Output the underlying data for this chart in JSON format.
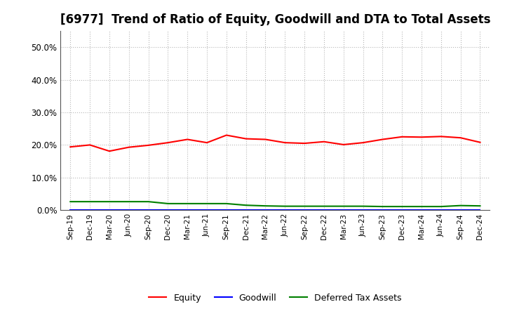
{
  "title": "[6977]  Trend of Ratio of Equity, Goodwill and DTA to Total Assets",
  "x_labels": [
    "Sep-19",
    "Dec-19",
    "Mar-20",
    "Jun-20",
    "Sep-20",
    "Dec-20",
    "Mar-21",
    "Jun-21",
    "Sep-21",
    "Dec-21",
    "Mar-22",
    "Jun-22",
    "Sep-22",
    "Dec-22",
    "Mar-23",
    "Jun-23",
    "Sep-23",
    "Dec-23",
    "Mar-24",
    "Jun-24",
    "Sep-24",
    "Dec-24"
  ],
  "equity": [
    0.194,
    0.2,
    0.181,
    0.193,
    0.199,
    0.207,
    0.217,
    0.207,
    0.23,
    0.219,
    0.217,
    0.207,
    0.205,
    0.21,
    0.201,
    0.207,
    0.217,
    0.225,
    0.224,
    0.226,
    0.222,
    0.208
  ],
  "goodwill": [
    0.0,
    0.0,
    0.0,
    0.0,
    0.0,
    0.0,
    0.0,
    0.0,
    0.0,
    0.0,
    0.0,
    0.0,
    0.0,
    0.0,
    0.0,
    0.0,
    0.0,
    0.0,
    0.0,
    0.0,
    0.0,
    0.0
  ],
  "dta": [
    0.026,
    0.026,
    0.026,
    0.026,
    0.026,
    0.02,
    0.02,
    0.02,
    0.02,
    0.015,
    0.013,
    0.012,
    0.012,
    0.012,
    0.012,
    0.012,
    0.011,
    0.011,
    0.011,
    0.011,
    0.014,
    0.013
  ],
  "equity_color": "#FF0000",
  "goodwill_color": "#0000FF",
  "dta_color": "#008000",
  "ylim": [
    0.0,
    0.55
  ],
  "yticks": [
    0.0,
    0.1,
    0.2,
    0.3,
    0.4,
    0.5
  ],
  "ytick_labels": [
    "0.0%",
    "10.0%",
    "20.0%",
    "30.0%",
    "40.0%",
    "50.0%"
  ],
  "background_color": "#FFFFFF",
  "grid_color": "#999999",
  "title_fontsize": 12,
  "legend_labels": [
    "Equity",
    "Goodwill",
    "Deferred Tax Assets"
  ]
}
